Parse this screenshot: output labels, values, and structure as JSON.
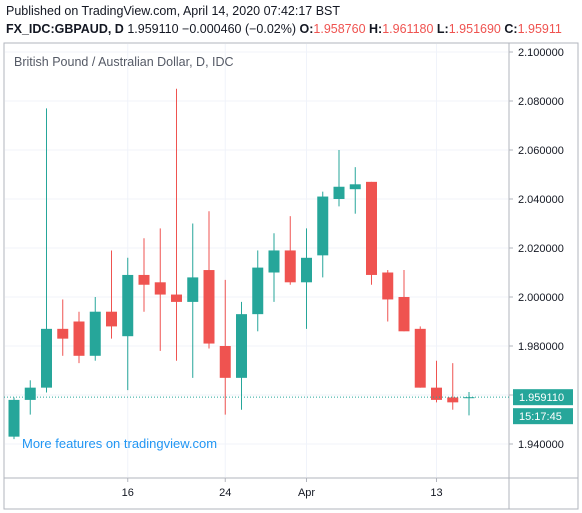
{
  "header": {
    "published": "Published on TradingView.com, April 14, 2020 07:42:17 BST",
    "symbol": "FX_IDC:GBPAUD, D",
    "last": "1.959110",
    "change": "−0.000460 (−0.02%)",
    "o_label": "O:",
    "o_value": "1.958760",
    "h_label": "H:",
    "h_value": "1.961180",
    "l_label": "L:",
    "l_value": "1.951690",
    "c_label": "C:",
    "c_value": "1.95911"
  },
  "promo_text": "More features on tradingview.com",
  "price_tag": {
    "value": "1.959110",
    "countdown": "15:17:45"
  },
  "colors": {
    "up": "#26a69a",
    "down": "#ef5350",
    "axis": "#b2b5be",
    "grid": "#f0f3fa",
    "last_line": "#26a69a"
  },
  "chart_data": {
    "type": "candlestick",
    "title": "British Pound / Australian Dollar, D, IDC",
    "ylim": [
      1.93,
      2.11
    ],
    "y_ticks": [
      "1.940000",
      "1.960000",
      "1.980000",
      "2.000000",
      "2.020000",
      "2.040000",
      "2.060000",
      "2.080000",
      "2.100000"
    ],
    "y_tick_values": [
      1.94,
      1.96,
      1.98,
      2.0,
      2.02,
      2.04,
      2.06,
      2.08,
      2.1
    ],
    "x_ticks": [
      {
        "label": "16",
        "index": 7
      },
      {
        "label": "24",
        "index": 13
      },
      {
        "label": "Apr",
        "index": 18
      },
      {
        "label": "13",
        "index": 26
      }
    ],
    "candles": [
      {
        "o": 1.943,
        "h": 1.959,
        "l": 1.942,
        "c": 1.958
      },
      {
        "o": 1.958,
        "h": 1.966,
        "l": 1.952,
        "c": 1.963
      },
      {
        "o": 1.963,
        "h": 2.077,
        "l": 1.961,
        "c": 1.987
      },
      {
        "o": 1.987,
        "h": 1.999,
        "l": 1.976,
        "c": 1.983
      },
      {
        "o": 1.99,
        "h": 1.994,
        "l": 1.973,
        "c": 1.976
      },
      {
        "o": 1.976,
        "h": 2.0,
        "l": 1.974,
        "c": 1.994
      },
      {
        "o": 1.994,
        "h": 2.019,
        "l": 1.983,
        "c": 1.988
      },
      {
        "o": 1.984,
        "h": 2.016,
        "l": 1.962,
        "c": 2.009
      },
      {
        "o": 2.009,
        "h": 2.024,
        "l": 1.994,
        "c": 2.005
      },
      {
        "o": 2.006,
        "h": 2.028,
        "l": 1.978,
        "c": 2.001
      },
      {
        "o": 2.001,
        "h": 2.085,
        "l": 1.974,
        "c": 1.998
      },
      {
        "o": 1.998,
        "h": 2.03,
        "l": 1.967,
        "c": 2.008
      },
      {
        "o": 2.011,
        "h": 2.035,
        "l": 1.979,
        "c": 1.981
      },
      {
        "o": 1.98,
        "h": 2.007,
        "l": 1.952,
        "c": 1.967
      },
      {
        "o": 1.967,
        "h": 1.998,
        "l": 1.954,
        "c": 1.993
      },
      {
        "o": 1.993,
        "h": 2.019,
        "l": 1.986,
        "c": 2.012
      },
      {
        "o": 2.01,
        "h": 2.026,
        "l": 1.998,
        "c": 2.019
      },
      {
        "o": 2.019,
        "h": 2.033,
        "l": 2.005,
        "c": 2.006
      },
      {
        "o": 2.006,
        "h": 2.028,
        "l": 1.987,
        "c": 2.016
      },
      {
        "o": 2.017,
        "h": 2.043,
        "l": 2.008,
        "c": 2.041
      },
      {
        "o": 2.04,
        "h": 2.06,
        "l": 2.037,
        "c": 2.045
      },
      {
        "o": 2.044,
        "h": 2.053,
        "l": 2.034,
        "c": 2.046
      },
      {
        "o": 2.047,
        "h": 2.047,
        "l": 2.005,
        "c": 2.009
      },
      {
        "o": 2.01,
        "h": 2.011,
        "l": 1.99,
        "c": 1.999
      },
      {
        "o": 2.0,
        "h": 2.011,
        "l": 1.986,
        "c": 1.986
      },
      {
        "o": 1.987,
        "h": 1.988,
        "l": 1.963,
        "c": 1.963
      },
      {
        "o": 1.963,
        "h": 1.974,
        "l": 1.957,
        "c": 1.958
      },
      {
        "o": 1.959,
        "h": 1.973,
        "l": 1.954,
        "c": 1.957
      },
      {
        "o": 1.9588,
        "h": 1.9612,
        "l": 1.9517,
        "c": 1.9591
      }
    ]
  }
}
